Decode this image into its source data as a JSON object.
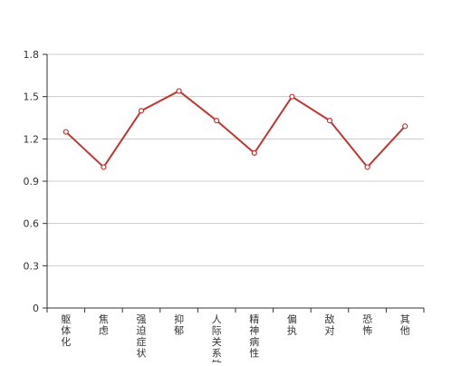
{
  "chart_data": {
    "type": "line",
    "title": "",
    "xlabel": "",
    "ylabel": "",
    "categories": [
      "躯体化",
      "焦虑",
      "强迫症状",
      "抑郁",
      "人际关系敏感",
      "精神病性",
      "偏执",
      "敌对",
      "恐怖",
      "其他"
    ],
    "series": [
      {
        "values": [
          1.25,
          1.0,
          1.4,
          1.54,
          1.33,
          1.1,
          1.5,
          1.33,
          1.0,
          1.29
        ]
      }
    ],
    "ylim": [
      0,
      1.8
    ],
    "yticks": [
      "0",
      "0.3",
      "0.6",
      "0.9",
      "1.2",
      "1.5",
      "1.8"
    ],
    "grid": true,
    "colors": {
      "line": "#c23531",
      "grid": "#cccccc",
      "axis": "#333333",
      "text": "#333333"
    }
  }
}
